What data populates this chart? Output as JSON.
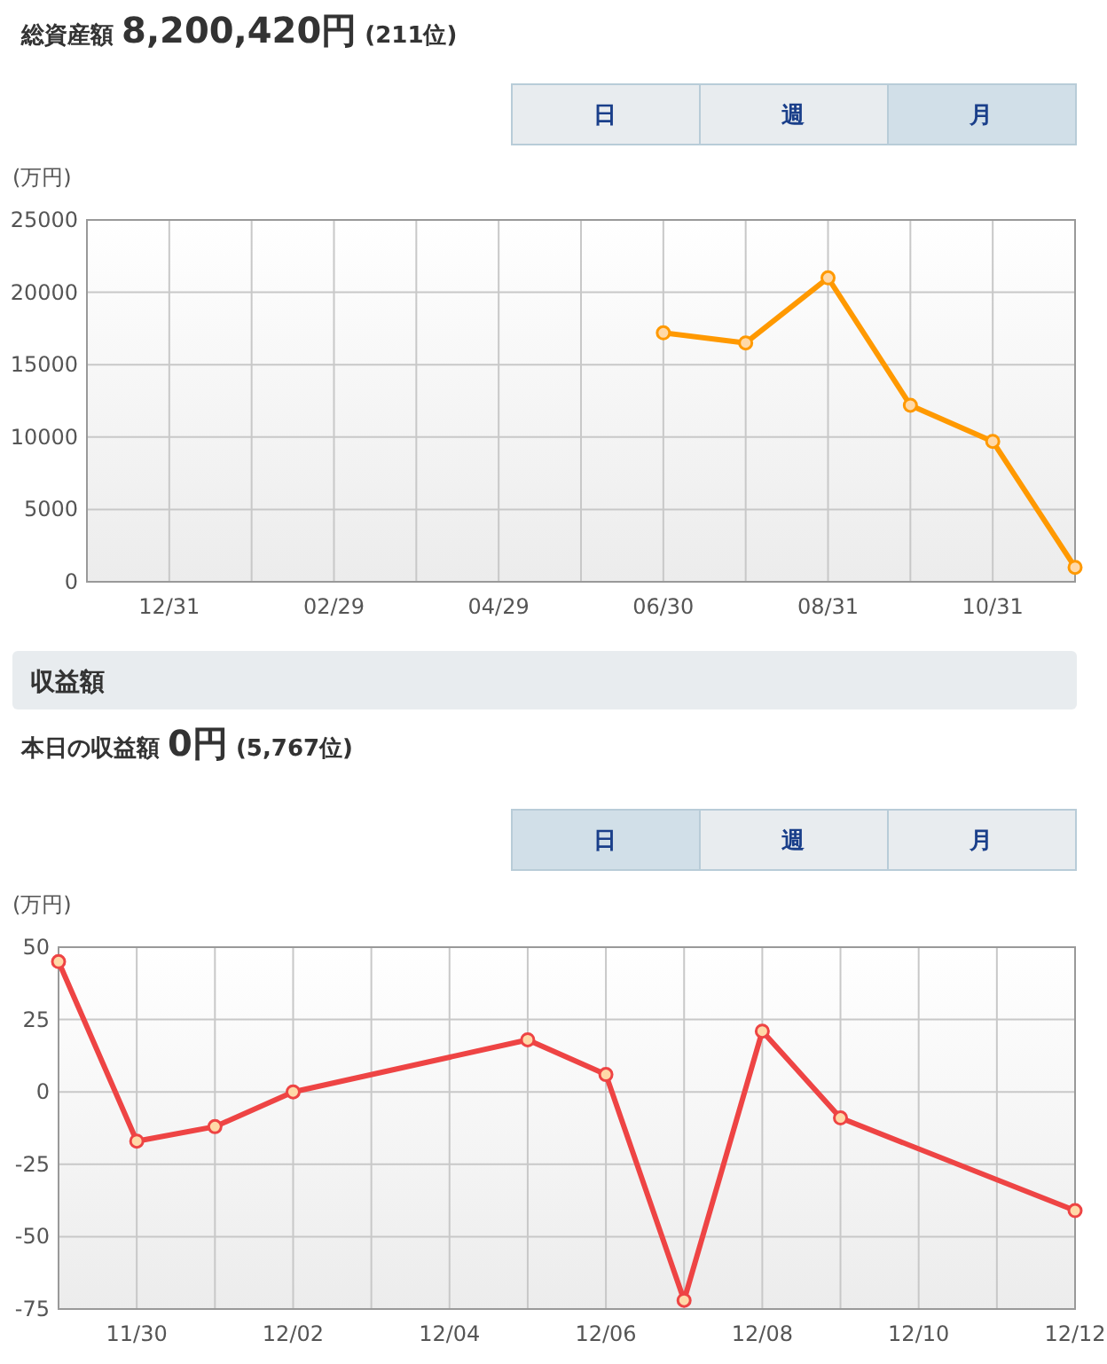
{
  "chart_data": [
    {
      "type": "line",
      "title": "総資産額",
      "subtitle": "8,200,420円 (211位)",
      "annotations": [
        "日",
        "週",
        "月"
      ],
      "ylabel": "(万円)",
      "categories": [
        null,
        "12/31",
        null,
        "02/29",
        null,
        "04/29",
        null,
        "06/30",
        null,
        "08/31",
        null,
        "10/31",
        null
      ],
      "series": [
        {
          "color": "#ff9900",
          "values": [
            null,
            null,
            null,
            null,
            null,
            null,
            null,
            17200,
            16500,
            21000,
            12200,
            9700,
            1000
          ]
        }
      ],
      "ylim": [
        0,
        25000
      ],
      "yticks": [
        0,
        5000,
        10000,
        15000,
        20000,
        25000
      ],
      "grid": true,
      "marker": "circle"
    },
    {
      "type": "line",
      "title": "本日の収益額",
      "subtitle": "0円 (5,767位)",
      "annotations": [
        "収益額",
        "日",
        "週",
        "月"
      ],
      "ylabel": "(万円)",
      "x": [
        "--11-29",
        "--11-30",
        "--12-01",
        "--12-02",
        "--12-05",
        "--12-06",
        "--12-07",
        "--12-08",
        "--12-09",
        "--12-12"
      ],
      "series": [
        {
          "color": "#ee4444",
          "values": [
            45,
            -17,
            -12,
            0,
            18,
            6,
            -72,
            21,
            -9,
            -41
          ]
        }
      ],
      "xlim": [
        "--11-29",
        "--12-12"
      ],
      "xticks": [
        {
          "value": "--11-30",
          "label": "11/30"
        },
        {
          "value": "--12-01",
          "label": null
        },
        {
          "value": "--12-02",
          "label": "12/02"
        },
        {
          "value": "--12-03",
          "label": null
        },
        {
          "value": "--12-04",
          "label": "12/04"
        },
        {
          "value": "--12-05",
          "label": null
        },
        {
          "value": "--12-06",
          "label": "12/06"
        },
        {
          "value": "--12-07",
          "label": null
        },
        {
          "value": "--12-08",
          "label": "12/08"
        },
        {
          "value": "--12-09",
          "label": null
        },
        {
          "value": "--12-10",
          "label": "12/10"
        },
        {
          "value": "--12-11",
          "label": null
        },
        {
          "value": "--12-12",
          "label": "12/12"
        }
      ],
      "ylim": [
        -75,
        50
      ],
      "yticks": [
        -75,
        -50,
        -25,
        0,
        25,
        50
      ],
      "grid": true,
      "marker": "circle"
    }
  ]
}
